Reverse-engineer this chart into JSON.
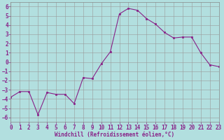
{
  "x": [
    0,
    1,
    2,
    3,
    4,
    5,
    6,
    7,
    8,
    9,
    10,
    11,
    12,
    13,
    14,
    15,
    16,
    17,
    18,
    19,
    20,
    21,
    22,
    23
  ],
  "y": [
    -3.8,
    -3.2,
    -3.2,
    -5.7,
    -3.3,
    -3.5,
    -3.5,
    -4.5,
    -1.7,
    -1.8,
    -0.2,
    1.1,
    5.2,
    5.8,
    5.6,
    4.7,
    4.1,
    3.2,
    2.6,
    2.7,
    2.7,
    1.0,
    -0.3,
    -0.5
  ],
  "line_color": "#882288",
  "marker": "s",
  "marker_size": 2,
  "bg_color": "#b2dfdf",
  "grid_color": "#999999",
  "xlabel": "Windchill (Refroidissement éolien,°C)",
  "xlabel_color": "#882288",
  "tick_color": "#882288",
  "ylim": [
    -6.5,
    6.5
  ],
  "xlim": [
    0,
    23
  ],
  "yticks": [
    -6,
    -5,
    -4,
    -3,
    -2,
    -1,
    0,
    1,
    2,
    3,
    4,
    5,
    6
  ],
  "xticks": [
    0,
    1,
    2,
    3,
    4,
    5,
    6,
    7,
    8,
    9,
    10,
    11,
    12,
    13,
    14,
    15,
    16,
    17,
    18,
    19,
    20,
    21,
    22,
    23
  ],
  "tick_fontsize": 5.5,
  "xlabel_fontsize": 5.5,
  "linewidth": 0.8
}
